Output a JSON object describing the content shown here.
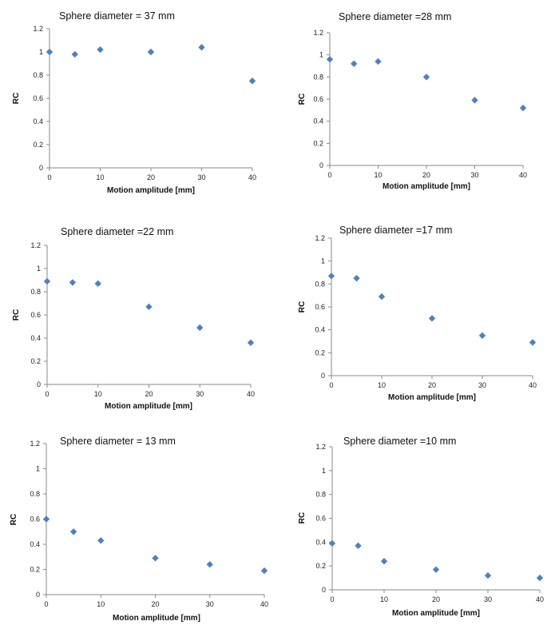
{
  "chart_data": [
    {
      "type": "scatter",
      "title": "Sphere diameter = 37 mm",
      "xlabel": "Motion amplitude [mm]",
      "ylabel": "RC",
      "xlim": [
        0,
        40
      ],
      "ylim": [
        0,
        1.2
      ],
      "xticks": [
        0,
        10,
        20,
        30,
        40
      ],
      "yticks": [
        0,
        0.2,
        0.4,
        0.6,
        0.8,
        1,
        1.2
      ],
      "grid": false,
      "legend": "none",
      "marker_color": "#4f81bd",
      "x": [
        0,
        5,
        10,
        20,
        30,
        40
      ],
      "y": [
        1.0,
        0.98,
        1.02,
        1.0,
        1.04,
        0.75
      ]
    },
    {
      "type": "scatter",
      "title": "Sphere diameter =28 mm",
      "xlabel": "Motion amplitude [mm]",
      "ylabel": "RC",
      "xlim": [
        0,
        40
      ],
      "ylim": [
        0,
        1.2
      ],
      "xticks": [
        0,
        10,
        20,
        30,
        40
      ],
      "yticks": [
        0,
        0.2,
        0.4,
        0.6,
        0.8,
        1,
        1.2
      ],
      "grid": false,
      "legend": "none",
      "marker_color": "#4f81bd",
      "x": [
        0,
        5,
        10,
        20,
        30,
        40
      ],
      "y": [
        0.96,
        0.92,
        0.94,
        0.8,
        0.59,
        0.52
      ]
    },
    {
      "type": "scatter",
      "title": "Sphere diameter =22 mm",
      "xlabel": "Motion amplitude [mm]",
      "ylabel": "RC",
      "xlim": [
        0,
        40
      ],
      "ylim": [
        0,
        1.2
      ],
      "xticks": [
        0,
        10,
        20,
        30,
        40
      ],
      "yticks": [
        0,
        0.2,
        0.4,
        0.6,
        0.8,
        1,
        1.2
      ],
      "grid": false,
      "legend": "none",
      "marker_color": "#4f81bd",
      "x": [
        0,
        5,
        10,
        20,
        30,
        40
      ],
      "y": [
        0.89,
        0.88,
        0.87,
        0.67,
        0.49,
        0.36
      ]
    },
    {
      "type": "scatter",
      "title": "Sphere diameter =17 mm",
      "xlabel": "Motion amplitude [mm]",
      "ylabel": "RC",
      "xlim": [
        0,
        40
      ],
      "ylim": [
        0,
        1.2
      ],
      "xticks": [
        0,
        10,
        20,
        30,
        40
      ],
      "yticks": [
        0,
        0.2,
        0.4,
        0.6,
        0.8,
        1,
        1.2
      ],
      "grid": false,
      "legend": "none",
      "marker_color": "#4f81bd",
      "x": [
        0,
        5,
        10,
        20,
        30,
        40
      ],
      "y": [
        0.87,
        0.85,
        0.69,
        0.5,
        0.35,
        0.29
      ]
    },
    {
      "type": "scatter",
      "title": "Sphere diameter = 13 mm",
      "xlabel": "Motion amplitude [mm]",
      "ylabel": "RC",
      "xlim": [
        0,
        40
      ],
      "ylim": [
        0,
        1.2
      ],
      "xticks": [
        0,
        10,
        20,
        30,
        40
      ],
      "yticks": [
        0,
        0.2,
        0.4,
        0.6,
        0.8,
        1,
        1.2
      ],
      "grid": false,
      "legend": "none",
      "marker_color": "#4f81bd",
      "x": [
        0,
        5,
        10,
        20,
        30,
        40
      ],
      "y": [
        0.6,
        0.5,
        0.43,
        0.29,
        0.24,
        0.19
      ]
    },
    {
      "type": "scatter",
      "title": "Sphere diameter =10 mm",
      "xlabel": "Motion amplitude [mm]",
      "ylabel": "RC",
      "xlim": [
        0,
        40
      ],
      "ylim": [
        0,
        1.2
      ],
      "xticks": [
        0,
        10,
        20,
        30,
        40
      ],
      "yticks": [
        0,
        0.2,
        0.4,
        0.6,
        0.8,
        1,
        1.2
      ],
      "grid": false,
      "legend": "none",
      "marker_color": "#4f81bd",
      "x": [
        0,
        5,
        10,
        20,
        30,
        40
      ],
      "y": [
        0.39,
        0.37,
        0.24,
        0.17,
        0.12,
        0.1
      ]
    }
  ]
}
